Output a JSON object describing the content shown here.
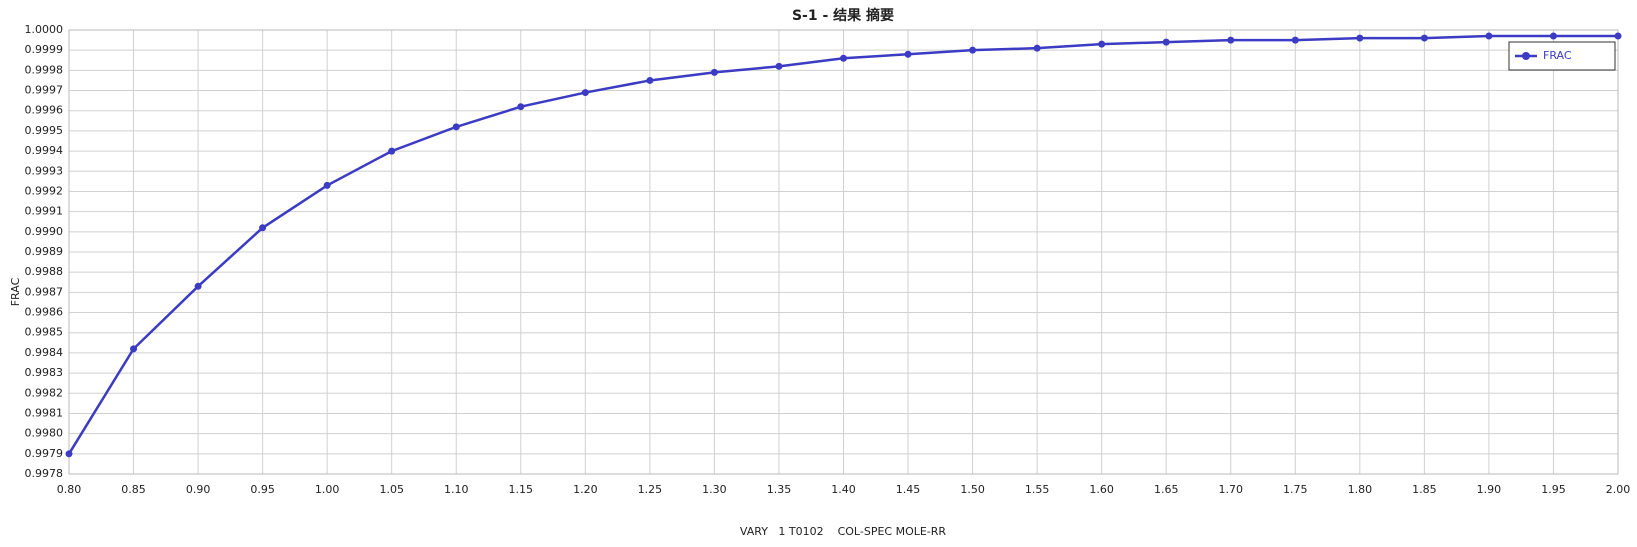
{
  "chart_data": {
    "type": "line",
    "title": "S-1 - 结果 摘要",
    "x_label": "VARY   1 T0102    COL-SPEC MOLE-RR",
    "y_label": "FRAC",
    "x": [
      0.8,
      0.85,
      0.9,
      0.95,
      1.0,
      1.05,
      1.1,
      1.15,
      1.2,
      1.25,
      1.3,
      1.35,
      1.4,
      1.45,
      1.5,
      1.55,
      1.6,
      1.65,
      1.7,
      1.75,
      1.8,
      1.85,
      1.9,
      1.95,
      2.0
    ],
    "series": [
      {
        "name": "FRAC",
        "color": "#3b3bc4",
        "values": [
          0.9979,
          0.99842,
          0.99873,
          0.99902,
          0.99923,
          0.9994,
          0.99952,
          0.99962,
          0.99969,
          0.99975,
          0.99979,
          0.99982,
          0.99986,
          0.99988,
          0.9999,
          0.99991,
          0.99993,
          0.99994,
          0.99995,
          0.99995,
          0.99996,
          0.99996,
          0.99997,
          0.99997,
          0.99997
        ]
      }
    ],
    "xlim": [
      0.8,
      2.0
    ],
    "xticks": [
      {
        "value": 0.8,
        "label": "0.80"
      },
      0.85,
      {
        "value": 0.9,
        "label": "0.90"
      },
      0.95,
      {
        "value": 1.0,
        "label": "1.00"
      },
      1.05,
      {
        "value": 1.1,
        "label": "1.10"
      },
      1.15,
      {
        "value": 1.2,
        "label": "1.20"
      },
      1.25,
      {
        "value": 1.3,
        "label": "1.30"
      },
      1.35,
      {
        "value": 1.4,
        "label": "1.40"
      },
      1.45,
      {
        "value": 1.5,
        "label": "1.50"
      },
      1.55,
      {
        "value": 1.6,
        "label": "1.60"
      },
      1.65,
      {
        "value": 1.7,
        "label": "1.70"
      },
      1.75,
      {
        "value": 1.8,
        "label": "1.80"
      },
      1.85,
      {
        "value": 1.9,
        "label": "1.90"
      },
      1.95,
      {
        "value": 2.0,
        "label": "2.00"
      }
    ],
    "ylim": [
      0.9978,
      1.0
    ],
    "yticks": [
      0.9978,
      0.9979,
      {
        "value": 0.998,
        "label": "0.9980"
      },
      0.9981,
      0.9982,
      0.9983,
      0.9984,
      0.9985,
      0.9986,
      0.9987,
      0.9988,
      0.9989,
      {
        "value": 0.999,
        "label": "0.9990"
      },
      0.9991,
      0.9992,
      0.9993,
      0.9994,
      0.9995,
      0.9996,
      0.9997,
      0.9998,
      0.9999,
      {
        "value": 1.0,
        "label": "1.0000"
      }
    ],
    "grid": true,
    "legend": "upper right"
  }
}
